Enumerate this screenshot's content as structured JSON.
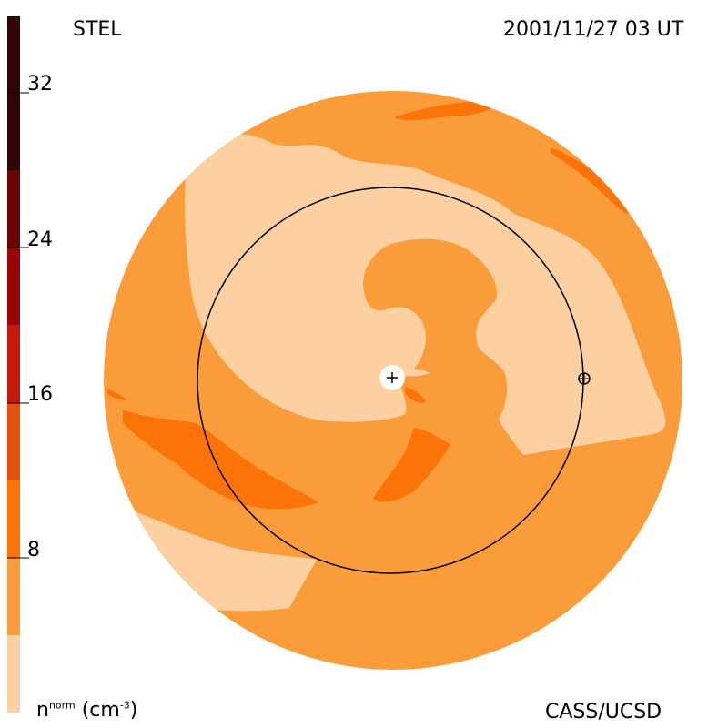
{
  "station": "STEL",
  "timestamp": "2001/11/27 03 UT",
  "credit": "CASS/UCSD",
  "colorbar": {
    "unit_base": "n",
    "unit_sup": "norm",
    "unit_rest": "(cm",
    "unit_exp": "-3",
    "unit_close": ")",
    "ticks": [
      "32",
      "24",
      "16",
      "8"
    ],
    "tick_values": [
      32,
      24,
      16,
      8
    ],
    "range": [
      0,
      36
    ],
    "levels": [
      "#fcd0a0",
      "#fb9c3a",
      "#fc7408",
      "#e45010",
      "#c41808",
      "#9a0606",
      "#6a0404",
      "#2e0404"
    ]
  },
  "markers": {
    "sun": "plus-icon",
    "earth": "circle-cross-icon"
  }
}
